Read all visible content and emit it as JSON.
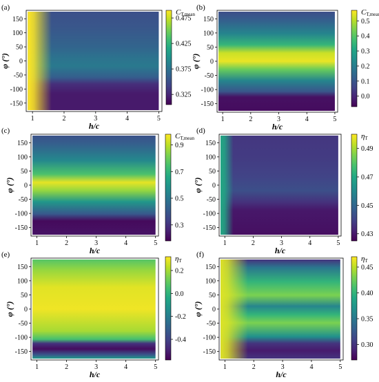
{
  "chart_data": [
    {
      "type": "heatmap",
      "panel_label": "(a)",
      "xlabel": "h/c",
      "ylabel": "φ (°)",
      "x_ticks": [
        "1",
        "2",
        "3",
        "4",
        "5"
      ],
      "y_ticks": [
        "150",
        "100",
        "50",
        "0",
        "-50",
        "-100",
        "-150"
      ],
      "xlim": [
        0.8,
        5.1
      ],
      "ylim": [
        -180,
        180
      ],
      "colorbar": {
        "label_main": "C",
        "label_sub": "T,mean",
        "ticks": [
          "0.475",
          "0.425",
          "0.375",
          "0.325"
        ],
        "tick_values": [
          0.475,
          0.425,
          0.375,
          0.325
        ],
        "vmin": 0.305,
        "vmax": 0.49
      },
      "bands": [
        {
          "y": -180,
          "v": 0.318
        },
        {
          "y": -120,
          "v": 0.318
        },
        {
          "y": -85,
          "v": 0.33
        },
        {
          "y": -60,
          "v": 0.36
        },
        {
          "y": -20,
          "v": 0.38
        },
        {
          "y": 10,
          "v": 0.375
        },
        {
          "y": 50,
          "v": 0.365
        },
        {
          "y": 120,
          "v": 0.355
        },
        {
          "y": 180,
          "v": 0.35
        }
      ],
      "near_wall": {
        "x_end": 1.05,
        "v": 0.49,
        "fade_to": 1.6
      }
    },
    {
      "type": "heatmap",
      "panel_label": "(b)",
      "xlabel": "h/c",
      "ylabel": "φ (°)",
      "x_ticks": [
        "1",
        "2",
        "3",
        "4",
        "5"
      ],
      "y_ticks": [
        "150",
        "100",
        "50",
        "0",
        "-50",
        "-100",
        "-150"
      ],
      "xlim": [
        0.8,
        5.1
      ],
      "ylim": [
        -180,
        180
      ],
      "colorbar": {
        "label_main": "C",
        "label_sub": "T,mean",
        "ticks": [
          "0.5",
          "0.4",
          "0.3",
          "0.2",
          "0.1",
          "0.0"
        ],
        "tick_values": [
          0.5,
          0.4,
          0.3,
          0.2,
          0.1,
          0.0
        ],
        "vmin": -0.07,
        "vmax": 0.57
      },
      "bands": [
        {
          "y": -180,
          "v": -0.05
        },
        {
          "y": -130,
          "v": -0.04
        },
        {
          "y": -110,
          "v": 0.1
        },
        {
          "y": -70,
          "v": 0.22
        },
        {
          "y": -30,
          "v": 0.42
        },
        {
          "y": 0,
          "v": 0.55
        },
        {
          "y": 30,
          "v": 0.52
        },
        {
          "y": 60,
          "v": 0.35
        },
        {
          "y": 100,
          "v": 0.22
        },
        {
          "y": 150,
          "v": 0.12
        },
        {
          "y": 180,
          "v": 0.08
        }
      ]
    },
    {
      "type": "heatmap",
      "panel_label": "(c)",
      "xlabel": "h/c",
      "ylabel": "φ (°)",
      "x_ticks": [
        "1",
        "2",
        "3",
        "4",
        "5"
      ],
      "y_ticks": [
        "150",
        "100",
        "50",
        "0",
        "-50",
        "-100",
        "-150"
      ],
      "xlim": [
        0.8,
        5.1
      ],
      "ylim": [
        -180,
        180
      ],
      "colorbar": {
        "label_main": "C",
        "label_sub": "T,mean",
        "ticks": [
          "0.9",
          "0.7",
          "0.5",
          "0.3"
        ],
        "tick_values": [
          0.9,
          0.7,
          0.5,
          0.3
        ],
        "vmin": 0.18,
        "vmax": 0.98
      },
      "bands": [
        {
          "y": -180,
          "v": 0.22
        },
        {
          "y": -130,
          "v": 0.2
        },
        {
          "y": -105,
          "v": 0.4
        },
        {
          "y": -60,
          "v": 0.6
        },
        {
          "y": -20,
          "v": 0.85
        },
        {
          "y": 10,
          "v": 0.95
        },
        {
          "y": 40,
          "v": 0.75
        },
        {
          "y": 90,
          "v": 0.55
        },
        {
          "y": 150,
          "v": 0.42
        },
        {
          "y": 180,
          "v": 0.38
        }
      ]
    },
    {
      "type": "heatmap",
      "panel_label": "(d)",
      "xlabel": "h/c",
      "ylabel": "φ (°)",
      "x_ticks": [
        "1",
        "2",
        "3",
        "4",
        "5"
      ],
      "y_ticks": [
        "150",
        "100",
        "50",
        "0",
        "-50",
        "-100",
        "-150"
      ],
      "xlim": [
        0.8,
        5.1
      ],
      "ylim": [
        -180,
        180
      ],
      "colorbar": {
        "label_main": "η",
        "label_sub": "T",
        "ticks": [
          "0.49",
          "0.47",
          "0.45",
          "0.43"
        ],
        "tick_values": [
          0.49,
          0.47,
          0.45,
          0.43
        ],
        "vmin": 0.425,
        "vmax": 0.5
      },
      "bands": [
        {
          "y": -180,
          "v": 0.428
        },
        {
          "y": -90,
          "v": 0.43
        },
        {
          "y": -60,
          "v": 0.436
        },
        {
          "y": -20,
          "v": 0.443
        },
        {
          "y": 30,
          "v": 0.44
        },
        {
          "y": 100,
          "v": 0.438
        },
        {
          "y": 180,
          "v": 0.437
        }
      ],
      "near_wall": {
        "x_end": 1.0,
        "v": 0.47,
        "fade_to": 1.3
      }
    },
    {
      "type": "heatmap",
      "panel_label": "(e)",
      "xlabel": "h/c",
      "ylabel": "φ (°)",
      "x_ticks": [
        "1",
        "2",
        "3",
        "4",
        "5"
      ],
      "y_ticks": [
        "150",
        "100",
        "50",
        "0",
        "-50",
        "-100",
        "-150"
      ],
      "xlim": [
        0.8,
        5.1
      ],
      "ylim": [
        -180,
        180
      ],
      "colorbar": {
        "label_main": "η",
        "label_sub": "T",
        "ticks": [
          "0.2",
          "0.0",
          "-0.2",
          "-0.4"
        ],
        "tick_values": [
          0.2,
          0.0,
          -0.2,
          -0.4
        ],
        "vmin": -0.58,
        "vmax": 0.32
      },
      "bands": [
        {
          "y": -180,
          "v": -0.1
        },
        {
          "y": -165,
          "v": -0.35
        },
        {
          "y": -145,
          "v": -0.55
        },
        {
          "y": -125,
          "v": -0.45
        },
        {
          "y": -110,
          "v": 0.05
        },
        {
          "y": -80,
          "v": 0.2
        },
        {
          "y": 0,
          "v": 0.3
        },
        {
          "y": 80,
          "v": 0.28
        },
        {
          "y": 140,
          "v": 0.18
        },
        {
          "y": 180,
          "v": 0.08
        }
      ]
    },
    {
      "type": "heatmap",
      "panel_label": "(f)",
      "xlabel": "h/c",
      "ylabel": "φ (°)",
      "x_ticks": [
        "1",
        "2",
        "3",
        "4",
        "5"
      ],
      "y_ticks": [
        "150",
        "100",
        "50",
        "0",
        "-50",
        "-100",
        "-150"
      ],
      "xlim": [
        0.8,
        5.1
      ],
      "ylim": [
        -180,
        180
      ],
      "colorbar": {
        "label_main": "η",
        "label_sub": "T",
        "ticks": [
          "0.45",
          "0.40",
          "0.35",
          "0.30"
        ],
        "tick_values": [
          0.45,
          0.4,
          0.35,
          0.3
        ],
        "vmin": 0.27,
        "vmax": 0.47
      },
      "bands": [
        {
          "y": -180,
          "v": 0.3
        },
        {
          "y": -150,
          "v": 0.285
        },
        {
          "y": -125,
          "v": 0.3
        },
        {
          "y": -100,
          "v": 0.37
        },
        {
          "y": -50,
          "v": 0.43
        },
        {
          "y": -20,
          "v": 0.4
        },
        {
          "y": 10,
          "v": 0.36
        },
        {
          "y": 50,
          "v": 0.43
        },
        {
          "y": 100,
          "v": 0.4
        },
        {
          "y": 150,
          "v": 0.35
        },
        {
          "y": 180,
          "v": 0.3
        }
      ],
      "near_wall": {
        "x_end": 1.1,
        "v": 0.46,
        "fade_to": 1.8
      }
    }
  ]
}
